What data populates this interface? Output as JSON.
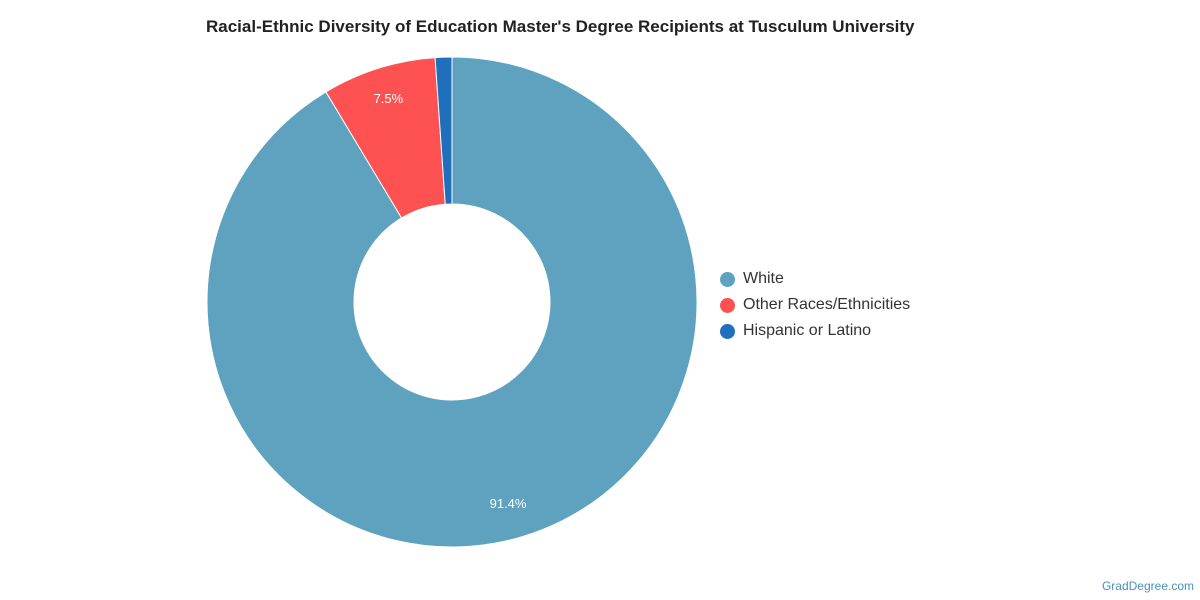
{
  "chart_data": {
    "type": "pie",
    "title": "Racial-Ethnic Diversity of Education Master's Degree Recipients at Tusculum University",
    "donut": true,
    "slices": [
      {
        "name": "White",
        "value": 91.4,
        "label": "91.4%",
        "color": "#5ea2bf"
      },
      {
        "name": "Other Races/Ethnicities",
        "value": 7.5,
        "label": "7.5%",
        "color": "#fd5152"
      },
      {
        "name": "Hispanic or Latino",
        "value": 1.1,
        "label": "",
        "color": "#1f6fbd"
      }
    ],
    "legend_position": "right"
  },
  "credit": "GradDegree.com"
}
